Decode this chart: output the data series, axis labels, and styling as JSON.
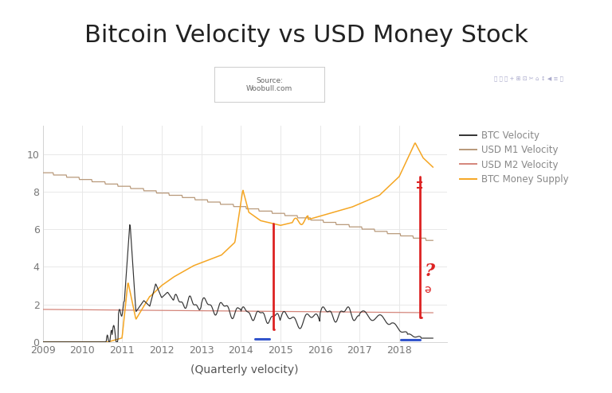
{
  "title": "Bitcoin Velocity vs USD Money Stock",
  "source_text": "Source:\nWoobull.com",
  "xlabel": "(Quarterly velocity)",
  "xlim": [
    2009.0,
    2019.2
  ],
  "ylim": [
    0,
    11.5
  ],
  "yticks": [
    0,
    2,
    4,
    6,
    8,
    10
  ],
  "xticks": [
    2009,
    2010,
    2011,
    2012,
    2013,
    2014,
    2015,
    2016,
    2017,
    2018
  ],
  "bg_color": "#ffffff",
  "grid_color": "#e8e8e8",
  "btc_velocity_color": "#333333",
  "usd_m1_color": "#b8997a",
  "usd_m2_color": "#d4857a",
  "btc_supply_color": "#f5a623",
  "blue_segment_color": "#3355cc",
  "red_annotation_color": "#dd2222",
  "legend_labels": [
    "BTC Velocity",
    "USD M1 Velocity",
    "USD M2 Velocity",
    "BTC Money Supply"
  ],
  "title_fontsize": 22,
  "axis_fontsize": 9,
  "legend_fontsize": 8.5
}
